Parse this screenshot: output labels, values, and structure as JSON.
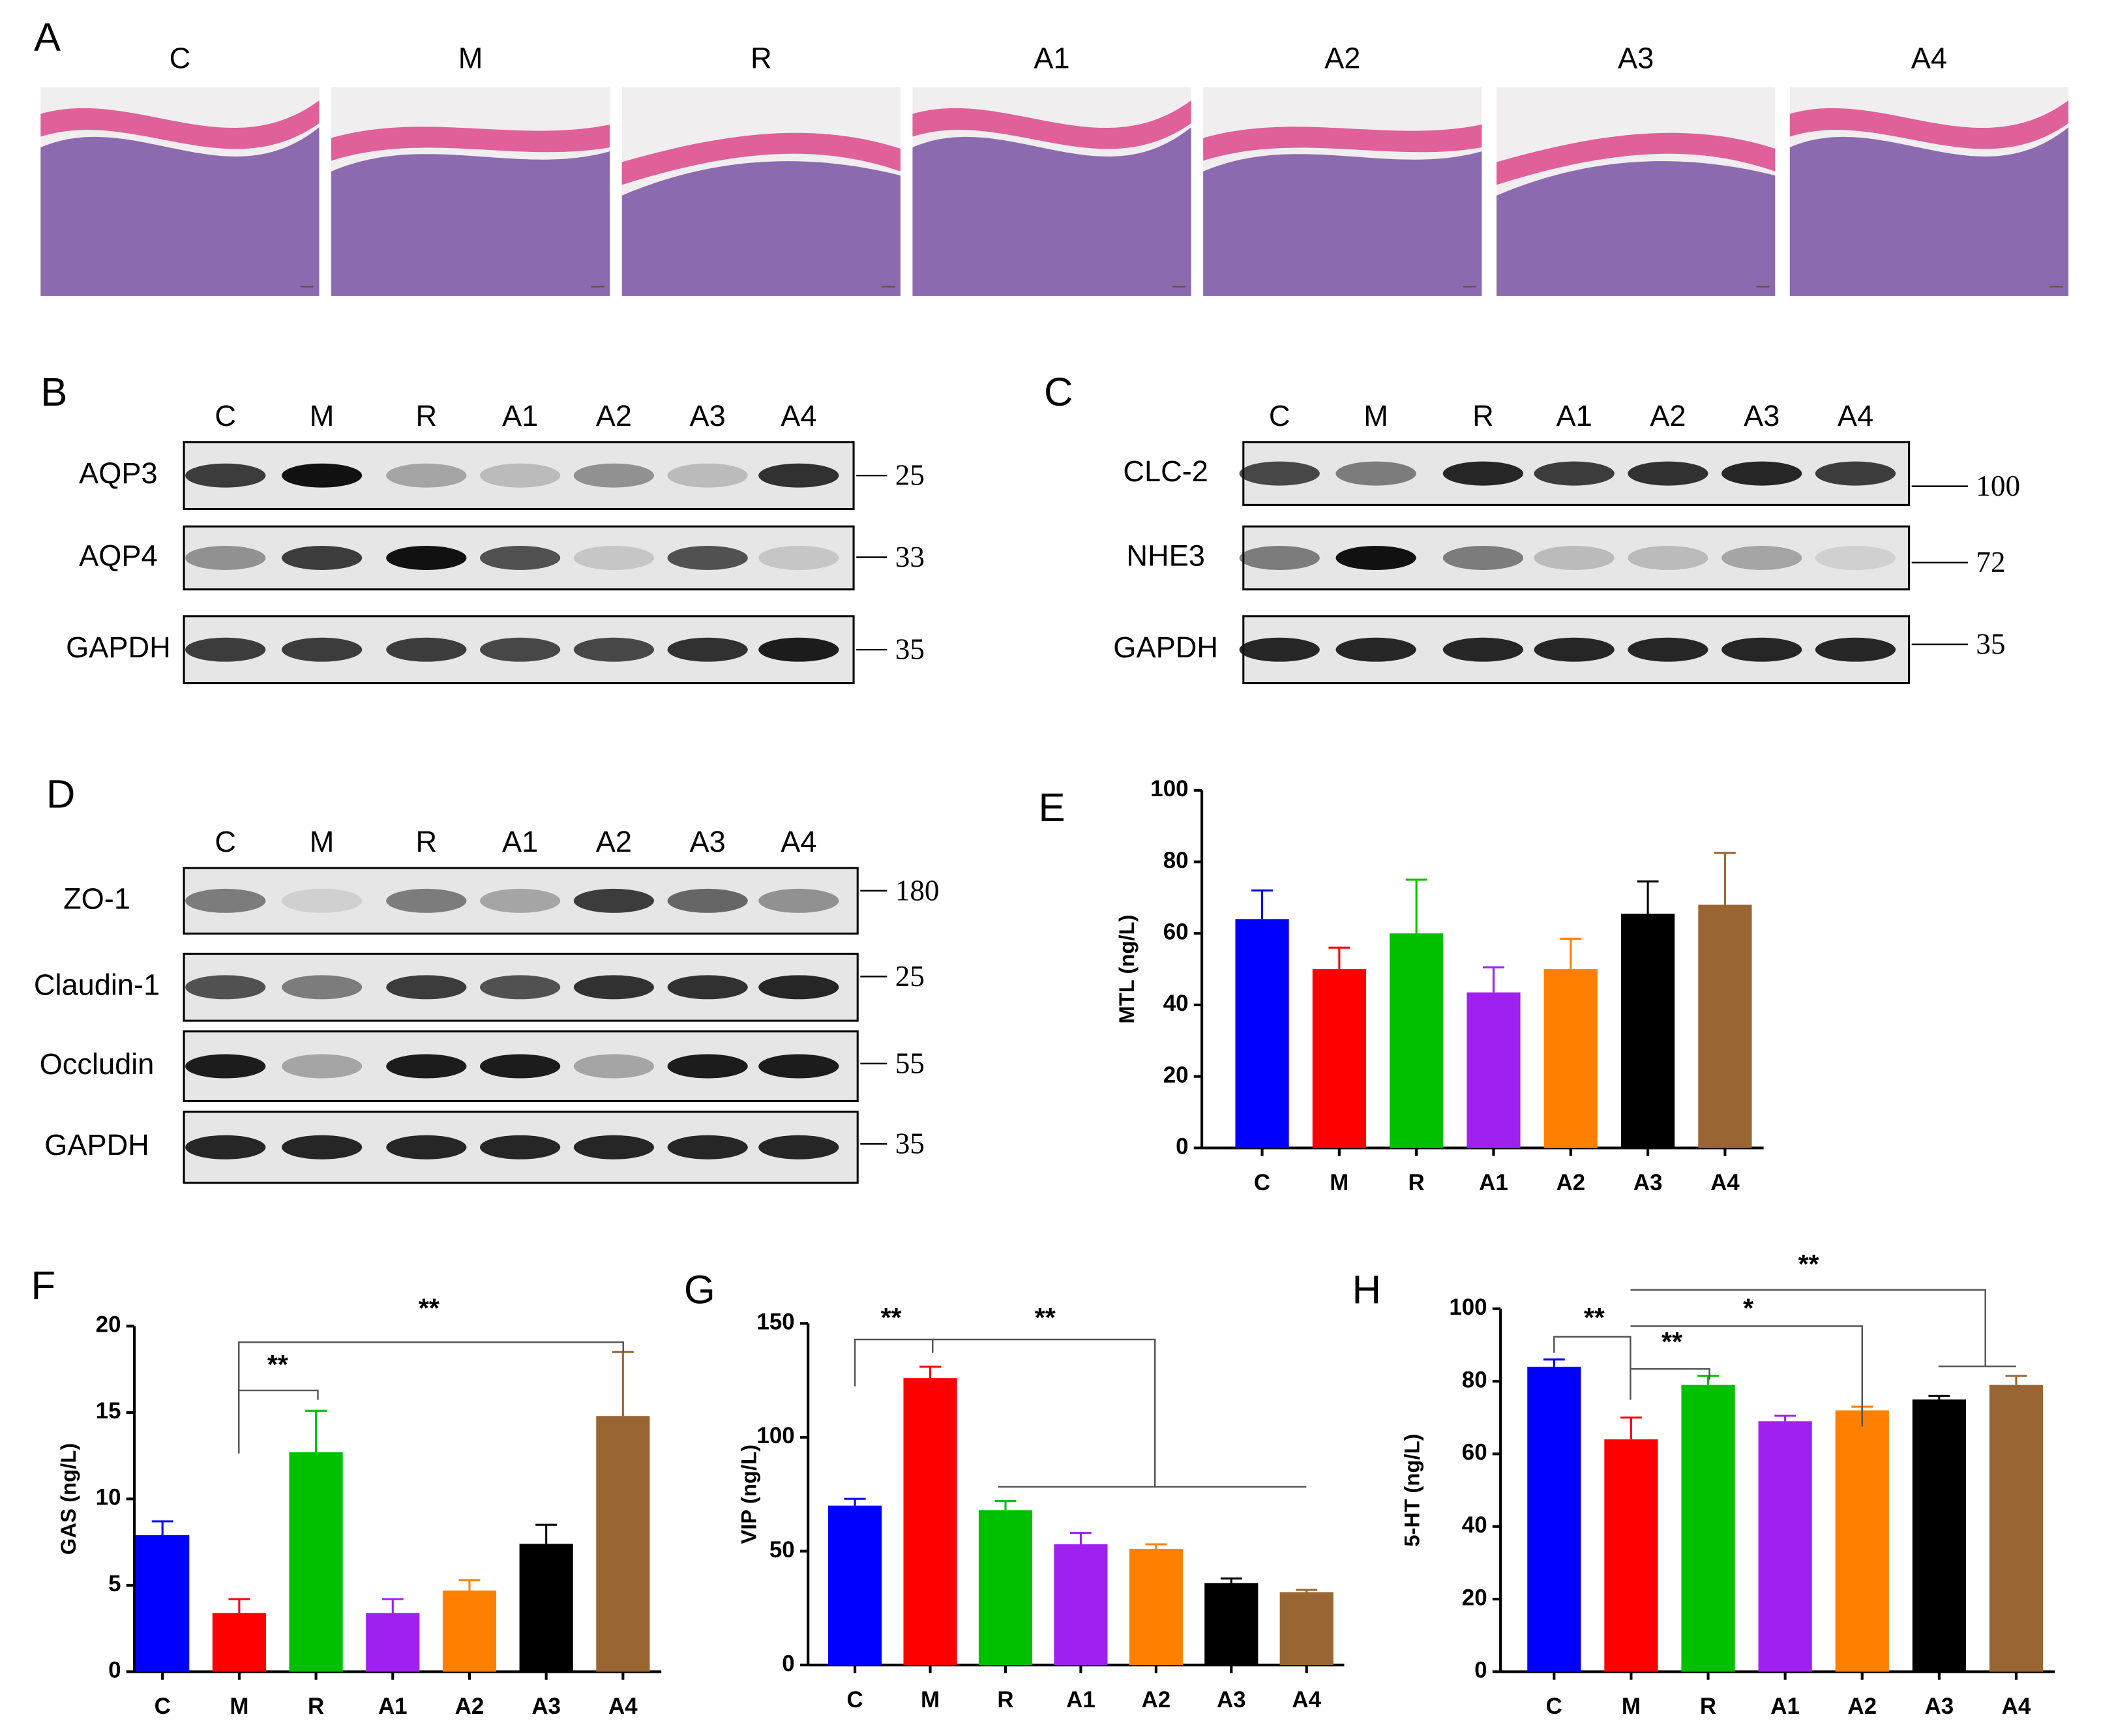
{
  "panels": {
    "A": {
      "letter": "A",
      "groups": [
        "C",
        "M",
        "R",
        "A1",
        "A2",
        "A3",
        "A4"
      ]
    },
    "B": {
      "letter": "B",
      "lanes": [
        "C",
        "M",
        "R",
        "A1",
        "A2",
        "A3",
        "A4"
      ],
      "rows": [
        {
          "protein": "AQP3",
          "mw": 25
        },
        {
          "protein": "AQP4",
          "mw": 33
        },
        {
          "protein": "GAPDH",
          "mw": 35
        }
      ]
    },
    "C": {
      "letter": "C",
      "lanes": [
        "C",
        "M",
        "R",
        "A1",
        "A2",
        "A3",
        "A4"
      ],
      "rows": [
        {
          "protein": "CLC-2",
          "mw": 100
        },
        {
          "protein": "NHE3",
          "mw": 72
        },
        {
          "protein": "GAPDH",
          "mw": 35
        }
      ]
    },
    "D": {
      "letter": "D",
      "lanes": [
        "C",
        "M",
        "R",
        "A1",
        "A2",
        "A3",
        "A4"
      ],
      "rows": [
        {
          "protein": "ZO-1",
          "mw": 180
        },
        {
          "protein": "Claudin-1",
          "mw": 25
        },
        {
          "protein": "Occludin",
          "mw": 55
        },
        {
          "protein": "GAPDH",
          "mw": 35
        }
      ]
    }
  },
  "chart_data": [
    {
      "type": "bar",
      "label": "E",
      "y_label": "MTL  (ng/L)",
      "categories": [
        "C",
        "M",
        "R",
        "A1",
        "A2",
        "A3",
        "A4"
      ],
      "values": [
        64,
        50,
        60,
        43.5,
        50,
        65.5,
        68
      ],
      "errors": [
        8,
        6,
        15,
        7,
        8.5,
        9,
        14.5
      ],
      "colors": [
        "#0000ff",
        "#ff0000",
        "#00c000",
        "#a020f0",
        "#ff8000",
        "#000000",
        "#996633"
      ],
      "ylim": [
        0,
        100
      ],
      "yticks": [
        0,
        20,
        40,
        60,
        80,
        100
      ],
      "annotations": []
    },
    {
      "type": "bar",
      "label": "F",
      "y_label": "GAS  (ng/L)",
      "categories": [
        "C",
        "M",
        "R",
        "A1",
        "A2",
        "A3",
        "A4"
      ],
      "values": [
        7.9,
        3.4,
        12.7,
        3.4,
        4.7,
        7.4,
        14.8
      ],
      "errors": [
        0.8,
        0.8,
        2.4,
        0.8,
        0.6,
        1.1,
        3.7
      ],
      "colors": [
        "#0000ff",
        "#ff0000",
        "#00c000",
        "#a020f0",
        "#ff8000",
        "#000000",
        "#996633"
      ],
      "ylim": [
        0,
        20
      ],
      "yticks": [
        0,
        5,
        10,
        15,
        20
      ],
      "annotations": [
        "**",
        "**"
      ]
    },
    {
      "type": "bar",
      "label": "G",
      "y_label": "VIP  (ng/L)",
      "categories": [
        "C",
        "M",
        "R",
        "A1",
        "A2",
        "A3",
        "A4"
      ],
      "values": [
        70,
        126,
        68,
        53,
        51,
        36,
        32
      ],
      "errors": [
        3,
        5,
        4,
        5,
        2,
        2,
        1
      ],
      "colors": [
        "#0000ff",
        "#ff0000",
        "#00c000",
        "#a020f0",
        "#ff8000",
        "#000000",
        "#996633"
      ],
      "ylim": [
        0,
        150
      ],
      "yticks": [
        0,
        50,
        100,
        150
      ],
      "annotations": [
        "**",
        "**"
      ]
    },
    {
      "type": "bar",
      "label": "H",
      "y_label": "5-HT  (ng/L)",
      "categories": [
        "C",
        "M",
        "R",
        "A1",
        "A2",
        "A3",
        "A4"
      ],
      "values": [
        84,
        64,
        79,
        69,
        72,
        75,
        79
      ],
      "errors": [
        2,
        6,
        2.5,
        1.5,
        1,
        1,
        2.5
      ],
      "colors": [
        "#0000ff",
        "#ff0000",
        "#00c000",
        "#a020f0",
        "#ff8000",
        "#000000",
        "#996633"
      ],
      "ylim": [
        0,
        100
      ],
      "yticks": [
        0,
        20,
        40,
        60,
        80,
        100
      ],
      "annotations": [
        "**",
        "**",
        "*",
        "**"
      ]
    }
  ]
}
